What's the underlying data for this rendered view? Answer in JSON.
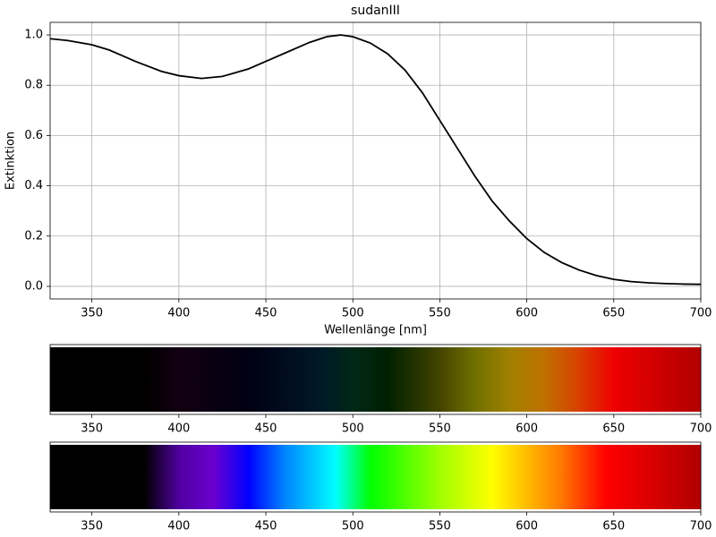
{
  "chart_data": [
    {
      "type": "line",
      "title": "sudanIII",
      "x_label": "Wellenlänge [nm]",
      "y_label": "Extinktion",
      "x": [
        326,
        336,
        350,
        360,
        375,
        390,
        400,
        413,
        425,
        440,
        450,
        460,
        475,
        485,
        493,
        500,
        510,
        520,
        530,
        540,
        550,
        560,
        570,
        580,
        590,
        600,
        610,
        620,
        630,
        640,
        650,
        660,
        670,
        680,
        690,
        700
      ],
      "series": [
        {
          "color": "#000000",
          "values": [
            0.985,
            0.978,
            0.961,
            0.94,
            0.895,
            0.855,
            0.838,
            0.827,
            0.835,
            0.865,
            0.895,
            0.925,
            0.97,
            0.993,
            1.0,
            0.993,
            0.968,
            0.925,
            0.86,
            0.77,
            0.66,
            0.55,
            0.44,
            0.34,
            0.26,
            0.19,
            0.135,
            0.095,
            0.065,
            0.043,
            0.028,
            0.019,
            0.014,
            0.011,
            0.009,
            0.008
          ]
        }
      ],
      "xlim": [
        326,
        700
      ],
      "xticks": [
        350,
        400,
        450,
        500,
        550,
        600,
        650,
        700
      ],
      "ylim": [
        -0.05,
        1.05
      ],
      "yticks": [
        {
          "value": 0,
          "label": "0.0"
        },
        {
          "value": 0.2,
          "label": "0.2"
        },
        {
          "value": 0.4,
          "label": "0.4"
        },
        {
          "value": 0.6,
          "label": "0.6"
        },
        {
          "value": 0.8,
          "label": "0.8"
        },
        {
          "value": 1,
          "label": "1.0"
        }
      ],
      "grid": true
    },
    {
      "type": "colorbar",
      "x": [
        326,
        380,
        400,
        440,
        480,
        500,
        520,
        550,
        570,
        590,
        610,
        630,
        650,
        700
      ],
      "colors": [
        "#000000",
        "#000000",
        "#120012",
        "#000012",
        "#001828",
        "#002818",
        "#002000",
        "#444400",
        "#707000",
        "#a08000",
        "#c07000",
        "#d84000",
        "#ee0000",
        "#b00000"
      ],
      "xlim": [
        326,
        700
      ],
      "xticks": [
        350,
        400,
        450,
        500,
        550,
        600,
        650,
        700
      ]
    },
    {
      "type": "colorbar",
      "x": [
        326,
        380,
        400,
        420,
        440,
        460,
        490,
        510,
        550,
        580,
        600,
        620,
        645,
        700
      ],
      "colors": [
        "#000000",
        "#000000",
        "#5000a0",
        "#6a00d0",
        "#0000ff",
        "#0080ff",
        "#00ffff",
        "#00ff00",
        "#a0ff00",
        "#ffff00",
        "#ffbb00",
        "#ff7700",
        "#ff0000",
        "#b00000"
      ],
      "xlim": [
        326,
        700
      ],
      "xticks": [
        350,
        400,
        450,
        500,
        550,
        600,
        650,
        700
      ]
    }
  ]
}
